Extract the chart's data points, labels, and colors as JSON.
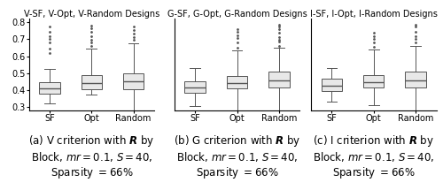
{
  "panels": [
    {
      "title": "V-SF, V-Opt, V-Random Designs",
      "caption_letter": "(a)",
      "caption_criterion": "V",
      "boxes": [
        {
          "label": "SF",
          "whislo": 0.32,
          "q1": 0.38,
          "med": 0.41,
          "q3": 0.445,
          "whishi": 0.522,
          "fliers_high": [
            0.62,
            0.645,
            0.68,
            0.7,
            0.72,
            0.745,
            0.775
          ],
          "fliers_low": []
        },
        {
          "label": "Opt",
          "whislo": 0.375,
          "q1": 0.405,
          "med": 0.44,
          "q3": 0.49,
          "whishi": 0.645,
          "fliers_high": [
            0.66,
            0.68,
            0.695,
            0.72,
            0.745,
            0.765,
            0.78
          ],
          "fliers_low": []
        },
        {
          "label": "Random",
          "whislo": 0.245,
          "q1": 0.405,
          "med": 0.45,
          "q3": 0.5,
          "whishi": 0.675,
          "fliers_high": [
            0.695,
            0.715,
            0.735,
            0.755,
            0.775
          ],
          "fliers_low": []
        }
      ]
    },
    {
      "title": "G-SF, G-Opt, G-Random Designs",
      "caption_letter": "(b)",
      "caption_criterion": "G",
      "boxes": [
        {
          "label": "SF",
          "whislo": 0.305,
          "q1": 0.385,
          "med": 0.415,
          "q3": 0.45,
          "whishi": 0.53,
          "fliers_high": [],
          "fliers_low": []
        },
        {
          "label": "Opt",
          "whislo": 0.27,
          "q1": 0.41,
          "med": 0.44,
          "q3": 0.48,
          "whishi": 0.635,
          "fliers_high": [
            0.65,
            0.68,
            0.705,
            0.725,
            0.745,
            0.76
          ],
          "fliers_low": []
        },
        {
          "label": "Random",
          "whislo": 0.245,
          "q1": 0.415,
          "med": 0.455,
          "q3": 0.51,
          "whishi": 0.65,
          "fliers_high": [
            0.66,
            0.685,
            0.695,
            0.715,
            0.74,
            0.76,
            0.775,
            0.785
          ],
          "fliers_low": []
        }
      ]
    },
    {
      "title": "I-SF, I-Opt, I-Random Designs",
      "caption_letter": "(c)",
      "caption_criterion": "I",
      "boxes": [
        {
          "label": "SF",
          "whislo": 0.33,
          "q1": 0.395,
          "med": 0.425,
          "q3": 0.465,
          "whishi": 0.53,
          "fliers_high": [],
          "fliers_low": []
        },
        {
          "label": "Opt",
          "whislo": 0.31,
          "q1": 0.415,
          "med": 0.445,
          "q3": 0.49,
          "whishi": 0.64,
          "fliers_high": [
            0.655,
            0.68,
            0.7,
            0.72,
            0.74
          ],
          "fliers_low": []
        },
        {
          "label": "Random",
          "whislo": 0.245,
          "q1": 0.415,
          "med": 0.455,
          "q3": 0.51,
          "whishi": 0.66,
          "fliers_high": [
            0.68,
            0.7,
            0.72,
            0.745,
            0.775,
            0.785
          ],
          "fliers_low": []
        }
      ]
    }
  ],
  "ylim": [
    0.28,
    0.82
  ],
  "yticks": [
    0.3,
    0.4,
    0.5,
    0.6,
    0.7,
    0.8
  ],
  "box_facecolor": "#e8e8e8",
  "box_edgecolor": "#555555",
  "median_color": "#555555",
  "flier_marker": ".",
  "flier_color": "#555555",
  "title_fontsize": 7.0,
  "tick_fontsize": 7.0,
  "caption_fontsize": 8.5
}
